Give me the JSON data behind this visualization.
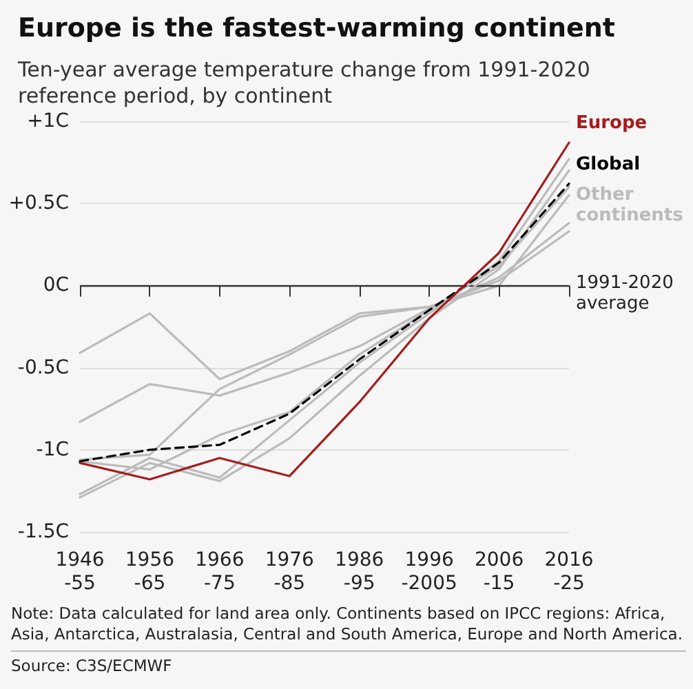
{
  "chart_data": {
    "type": "line",
    "title": "Europe is the fastest-warming continent",
    "subtitle": "Ten-year average temperature change from 1991-2020 reference period, by continent",
    "categories": [
      "1946\n-55",
      "1956\n-65",
      "1966\n-75",
      "1976\n-85",
      "1986\n-95",
      "1996\n-2005",
      "2006\n-15",
      "2016\n-25"
    ],
    "series": [
      {
        "color": "#bbbbbb",
        "values": [
          -0.41,
          -0.17,
          -0.57,
          -0.4,
          -0.17,
          -0.13,
          0.03,
          0.33
        ]
      },
      {
        "color": "#bbbbbb",
        "values": [
          -0.83,
          -0.6,
          -0.67,
          -0.53,
          -0.37,
          -0.14,
          0.05,
          0.38
        ]
      },
      {
        "name": "Other continents",
        "color": "#bbbbbb",
        "values": [
          -1.06,
          -1.03,
          -0.63,
          -0.42,
          -0.19,
          -0.13,
          0.0,
          0.55
        ]
      },
      {
        "color": "#bbbbbb",
        "values": [
          -1.27,
          -1.05,
          -1.17,
          -0.82,
          -0.47,
          -0.17,
          0.15,
          0.77
        ]
      },
      {
        "color": "#bbbbbb",
        "values": [
          -1.29,
          -1.08,
          -1.19,
          -0.93,
          -0.55,
          -0.2,
          0.1,
          0.7
        ]
      },
      {
        "color": "#bbbbbb",
        "values": [
          -1.07,
          -1.12,
          -0.91,
          -0.77,
          -0.42,
          -0.15,
          0.12,
          0.6
        ]
      },
      {
        "name": "Global",
        "color": "#000000",
        "line_style": "dashed",
        "values": [
          -1.07,
          -1.0,
          -0.97,
          -0.78,
          -0.45,
          -0.15,
          0.14,
          0.62
        ]
      },
      {
        "name": "Europe",
        "color": "#a61c1c",
        "values": [
          -1.08,
          -1.18,
          -1.05,
          -1.16,
          -0.71,
          -0.2,
          0.2,
          0.87
        ]
      }
    ],
    "ylim": [
      -1.5,
      1
    ],
    "yticks": [
      {
        "value": -1.5,
        "label": "-1.5C"
      },
      {
        "value": -1,
        "label": "-1C"
      },
      {
        "value": -0.5,
        "label": "-0.5C"
      },
      {
        "value": 0,
        "label": "0C"
      },
      {
        "value": 0.5,
        "label": "+0.5C"
      },
      {
        "value": 1,
        "label": "+1C"
      }
    ],
    "grid": "y",
    "marker": "none",
    "line_style": "solid",
    "legend": false,
    "ref_lines": [
      {
        "axis": "y",
        "value": 0,
        "label": "1991-2020 average",
        "color": "#333333"
      }
    ],
    "annotations": [
      "Note: Data calculated for land area only. Continents based on IPCC regions: Africa, Asia, Antarctica, Australasia, Central and South America, Europe and North America.",
      "Source: C3S/ECMWF"
    ]
  }
}
